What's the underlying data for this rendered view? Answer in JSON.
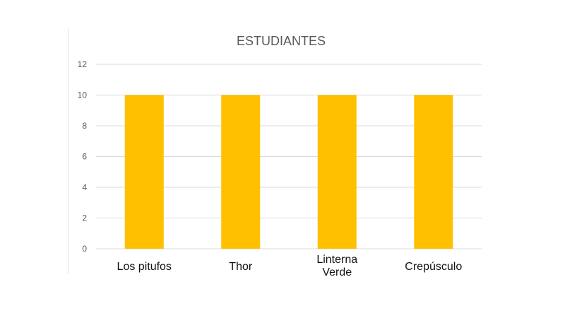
{
  "chart_data": {
    "type": "bar",
    "title": "ESTUDIANTES",
    "xlabel": "",
    "ylabel": "",
    "categories": [
      "Los pitufos",
      "Thor",
      "Linterna Verde",
      "Crepúsculo"
    ],
    "values": [
      10,
      10,
      10,
      10
    ],
    "ylim": [
      0,
      12
    ],
    "yticks": [
      0,
      2,
      4,
      6,
      8,
      10,
      12
    ],
    "grid": true,
    "legend": "none",
    "bar_color": "#FFC000"
  }
}
